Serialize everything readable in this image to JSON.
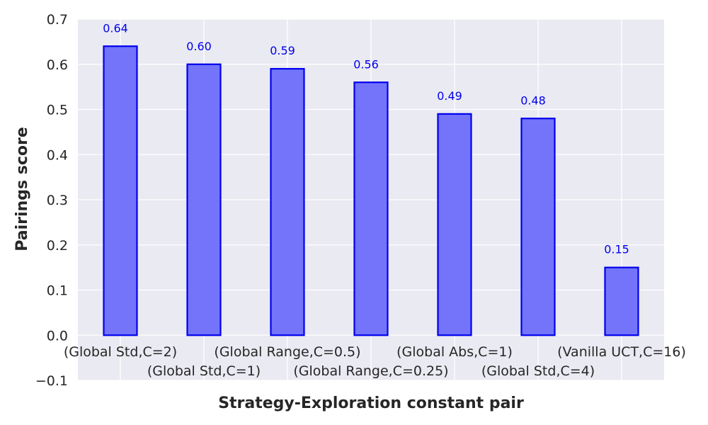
{
  "chart_data": {
    "type": "bar",
    "title": "",
    "xlabel": "Strategy-Exploration constant pair",
    "ylabel": "Pairings score",
    "categories": [
      "(Global Std,C=2)",
      "(Global Std,C=1)",
      "(Global Range,C=0.5)",
      "(Global Range,C=0.25)",
      "(Global Abs,C=1)",
      "(Global Std,C=4)",
      "(Vanilla UCT,C=16)"
    ],
    "values": [
      0.64,
      0.6,
      0.59,
      0.56,
      0.49,
      0.48,
      0.15
    ],
    "data_labels": [
      "0.64",
      "0.60",
      "0.59",
      "0.56",
      "0.49",
      "0.48",
      "0.15"
    ],
    "ylim": [
      -0.1,
      0.7
    ],
    "yticks": [
      -0.1,
      0.0,
      0.1,
      0.2,
      0.3,
      0.4,
      0.5,
      0.6,
      0.7
    ],
    "ytick_labels": [
      "−0.1",
      "0.0",
      "0.1",
      "0.2",
      "0.3",
      "0.4",
      "0.5",
      "0.6",
      "0.7"
    ],
    "grid": true,
    "colors": {
      "plot_background": "#eaeaf2",
      "grid": "#ffffff",
      "bar_fill": "#7474fa",
      "bar_edge": "#0000ee",
      "data_label": "#0000ee"
    }
  }
}
